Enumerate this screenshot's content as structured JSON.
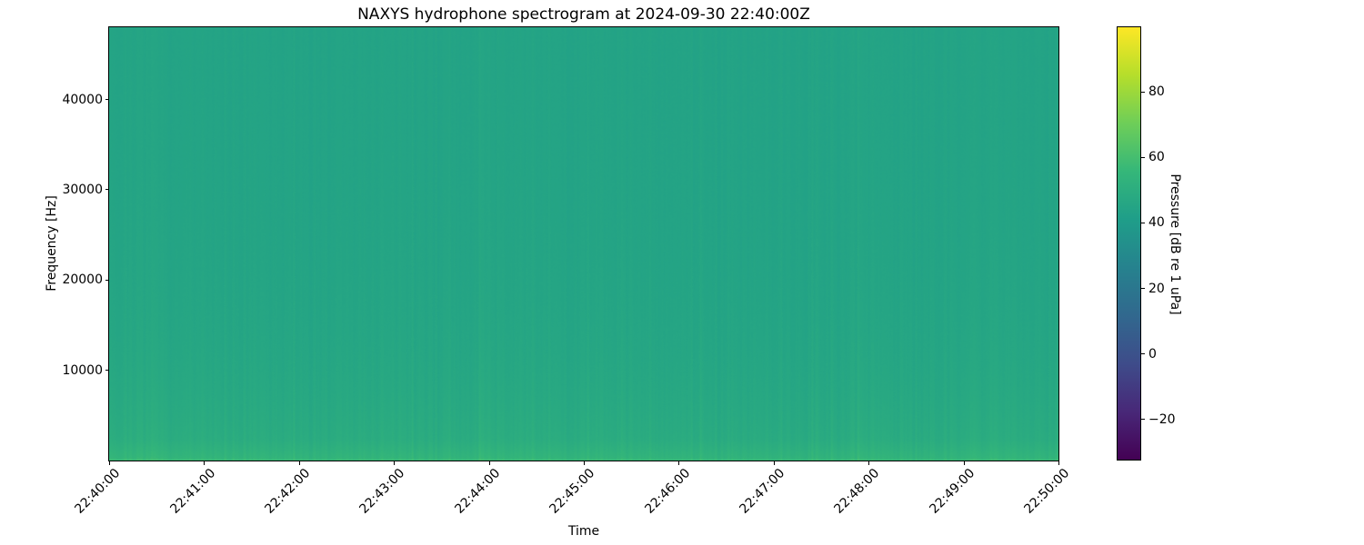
{
  "chart_data": {
    "type": "heatmap",
    "subtype": "spectrogram",
    "title": "NAXYS hydrophone spectrogram at 2024-09-30 22:40:00Z",
    "xlabel": "Time",
    "ylabel": "Frequency [Hz]",
    "x_tick_labels": [
      "22:40:00",
      "22:41:00",
      "22:42:00",
      "22:43:00",
      "22:44:00",
      "22:45:00",
      "22:46:00",
      "22:47:00",
      "22:48:00",
      "22:49:00",
      "22:50:00"
    ],
    "x_range_minutes": [
      0,
      10
    ],
    "y_ticks": [
      10000,
      20000,
      30000,
      40000
    ],
    "y_tick_labels": [
      "10000",
      "20000",
      "30000",
      "40000"
    ],
    "y_range_hz": [
      0,
      48000
    ],
    "grid": false,
    "legend": "none",
    "colormap": "viridis",
    "colormap_stops": [
      {
        "t": 0.0,
        "hex": "#440154"
      },
      {
        "t": 0.111,
        "hex": "#482878"
      },
      {
        "t": 0.222,
        "hex": "#3e4c8a"
      },
      {
        "t": 0.333,
        "hex": "#31688e"
      },
      {
        "t": 0.444,
        "hex": "#26828e"
      },
      {
        "t": 0.556,
        "hex": "#1f9e89"
      },
      {
        "t": 0.667,
        "hex": "#35b779"
      },
      {
        "t": 0.778,
        "hex": "#6ece58"
      },
      {
        "t": 0.889,
        "hex": "#b5de2b"
      },
      {
        "t": 1.0,
        "hex": "#fde725"
      }
    ],
    "colorbar": {
      "label": "Pressure [dB re 1 uPa]",
      "ticks": [
        80,
        60,
        40,
        20,
        0,
        -20
      ],
      "tick_labels": [
        "80",
        "60",
        "40",
        "20",
        "0",
        "−20"
      ],
      "vmin": -32.5,
      "vmax": 99.7
    },
    "field_description": {
      "summary": "Broadband ambient noise field around 44-56 dB; teal (~44 dB) at high frequencies, brightening to green (~52-57 dB) below ~10 kHz, with a thin brighter band at the lowest frequencies and fine vertical striation noise across all times",
      "base_db_high_freq": 44.2,
      "lowfreq_boost_db": 6.5,
      "lowfreq_scale_hz": 9000,
      "bottom_boost_db": 4.0,
      "bottom_boost_below_hz": 2400,
      "floor_boost_db": 3.0,
      "floor_below_hz": 350,
      "stripe_db": 1.5,
      "spike_chance": 0.06,
      "spike_db": 2.2,
      "stripe_env_base": 0.55,
      "stripe_env_amp": 0.85,
      "stripe_env_scale_hz": 15000,
      "slow_wave_db": 0.6,
      "pixel_noise_db": 1.1,
      "seed": 7
    }
  }
}
